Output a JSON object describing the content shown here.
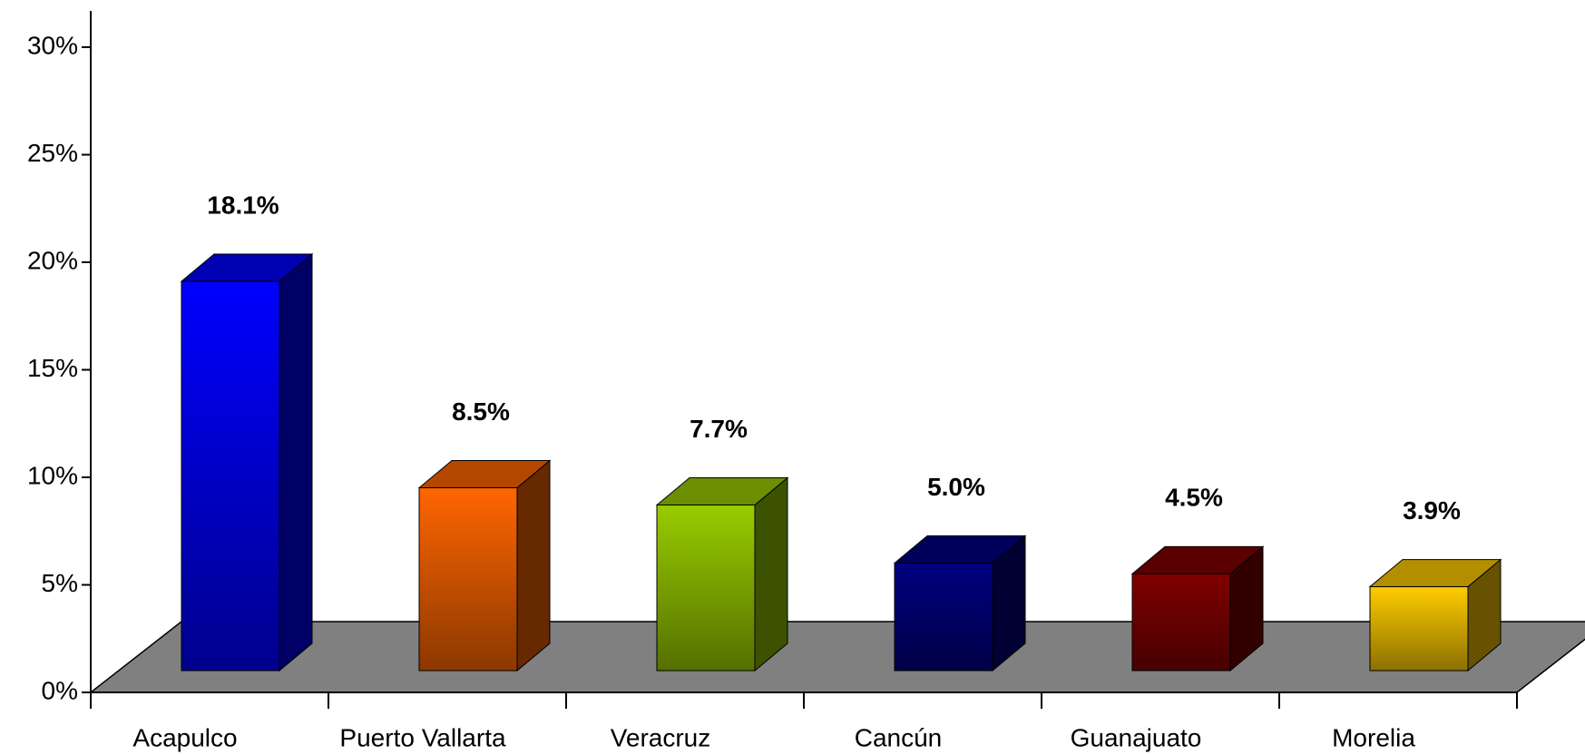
{
  "chart_data": {
    "type": "bar",
    "categories": [
      "Acapulco",
      "Puerto Vallarta",
      "Veracruz",
      "Cancún",
      "Guanajuato",
      "Morelia"
    ],
    "values": [
      18.1,
      8.5,
      7.7,
      5.0,
      4.5,
      3.9
    ],
    "value_labels": [
      "18.1%",
      "8.5%",
      "7.7%",
      "5.0%",
      "4.5%",
      "3.9%"
    ],
    "colors": [
      "#0000ff",
      "#ff6600",
      "#99cc00",
      "#000080",
      "#800000",
      "#ffcc00"
    ],
    "ylim": [
      0,
      30
    ],
    "yticks": [
      {
        "value": 0,
        "label": "0%"
      },
      {
        "value": 5,
        "label": "5%"
      },
      {
        "value": 10,
        "label": "10%"
      },
      {
        "value": 15,
        "label": "15%"
      },
      {
        "value": 20,
        "label": "20%"
      },
      {
        "value": 25,
        "label": "25%"
      },
      {
        "value": 30,
        "label": "30%"
      }
    ]
  }
}
